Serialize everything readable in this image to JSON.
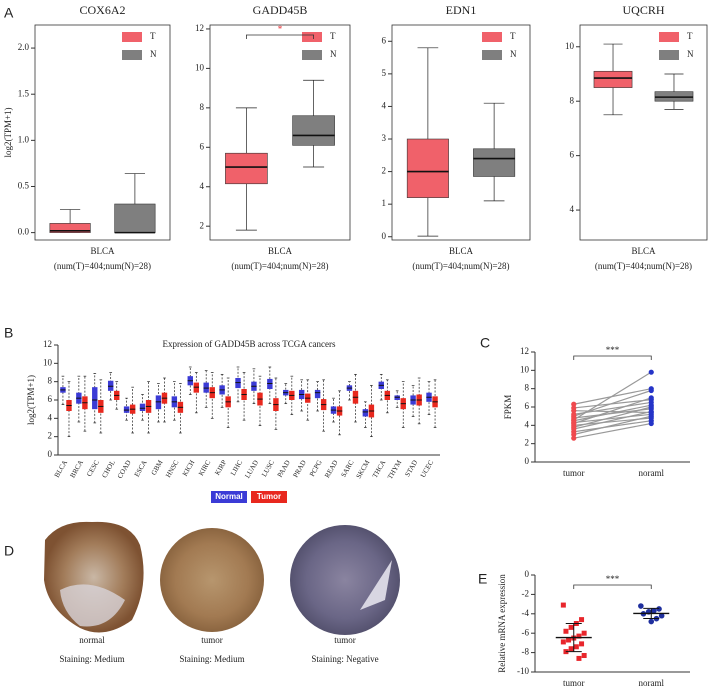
{
  "panel_labels": [
    "A",
    "B",
    "C",
    "D",
    "E"
  ],
  "chart_data": [
    {
      "type": "box",
      "title": "COX6A2",
      "ylabel": "log2(TPM+1)",
      "categories": [
        "BLCA"
      ],
      "xlabel": "(num(T)=404;num(N)=28)",
      "ylim": [
        -0.08,
        2.25
      ],
      "yticks": [
        {
          "value": 0,
          "label": "0.0"
        },
        0.5,
        {
          "value": 1,
          "label": "1.0"
        },
        1.5,
        {
          "value": 2,
          "label": "2.0"
        }
      ],
      "legend": "upper right",
      "series": [
        {
          "name": "T",
          "color": "#f0616a",
          "boxes": [
            [
              0,
              0,
              0.02,
              0.1,
              0.25
            ]
          ]
        },
        {
          "name": "N",
          "color": "#7f7f7f",
          "boxes": [
            [
              0,
              0,
              0,
              0.31,
              0.64
            ]
          ]
        }
      ]
    },
    {
      "type": "box",
      "title": "GADD45B",
      "categories": [
        "BLCA"
      ],
      "xlabel": "(num(T)=404;num(N)=28)",
      "ylim": [
        1.3,
        12.2
      ],
      "yticks": [
        2,
        4,
        6,
        8,
        10,
        12
      ],
      "legend": "upper right",
      "annotation": "*",
      "annotation_color": "#e8262c",
      "series": [
        {
          "name": "T",
          "color": "#f0616a",
          "boxes": [
            [
              1.8,
              4.15,
              5.0,
              5.7,
              8.0
            ]
          ]
        },
        {
          "name": "N",
          "color": "#7f7f7f",
          "boxes": [
            [
              5.0,
              6.1,
              6.6,
              7.6,
              9.4
            ]
          ]
        }
      ]
    },
    {
      "type": "box",
      "title": "EDN1",
      "categories": [
        "BLCA"
      ],
      "xlabel": "(num(T)=404;num(N)=28)",
      "ylim": [
        -0.1,
        6.5
      ],
      "yticks": [
        0,
        1,
        2,
        3,
        4,
        5,
        6
      ],
      "legend": "upper right",
      "series": [
        {
          "name": "T",
          "color": "#f0616a",
          "boxes": [
            [
              0.02,
              1.2,
              2.0,
              3.0,
              5.8
            ]
          ]
        },
        {
          "name": "N",
          "color": "#7f7f7f",
          "boxes": [
            [
              1.1,
              1.85,
              2.4,
              2.7,
              4.1
            ]
          ]
        }
      ]
    },
    {
      "type": "box",
      "title": "UQCRH",
      "categories": [
        "BLCA"
      ],
      "xlabel": "(num(T)=404;num(N)=28)",
      "ylim": [
        2.9,
        10.8
      ],
      "yticks": [
        4,
        6,
        8,
        10
      ],
      "legend": "upper right",
      "series": [
        {
          "name": "T",
          "color": "#f0616a",
          "boxes": [
            [
              7.5,
              8.5,
              8.85,
              9.1,
              10.1
            ]
          ]
        },
        {
          "name": "N",
          "color": "#7f7f7f",
          "boxes": [
            [
              7.7,
              8.0,
              8.15,
              8.35,
              9.0
            ]
          ]
        }
      ]
    },
    {
      "type": "box",
      "title": "Expression of GADD45B across TCGA cancers",
      "ylabel": "log2(TPM+1)",
      "categories": [
        "BLCA",
        "BRCA",
        "CESC",
        "CHOL",
        "COAD",
        "ESCA",
        "GBM",
        "HNSC",
        "KICH",
        "KIRC",
        "KIRP",
        "LIHC",
        "LUAD",
        "LUSC",
        "PAAD",
        "PRAD",
        "PCPG",
        "READ",
        "SARC",
        "SKCM",
        "THCA",
        "THYM",
        "STAD",
        "UCEC"
      ],
      "ylim": [
        0,
        12
      ],
      "yticks": [
        0,
        2,
        4,
        6,
        8,
        10,
        12
      ],
      "legend": "bottom",
      "rotate_labels": true,
      "series": [
        {
          "name": "Normal",
          "color": "#3b3bd6",
          "boxes": [
            [
              5.5,
              6.8,
              7.1,
              7.4,
              8.6
            ],
            [
              3.6,
              5.6,
              6.2,
              6.8,
              8.6
            ],
            [
              3.5,
              5.0,
              6.0,
              7.4,
              8.9
            ],
            [
              6.0,
              7.0,
              7.5,
              8.1,
              9.0
            ],
            [
              3.8,
              4.6,
              4.9,
              5.3,
              6.2
            ],
            [
              3.8,
              4.8,
              5.1,
              5.6,
              6.6
            ],
            [
              3.6,
              5.0,
              5.8,
              6.5,
              7.8
            ],
            [
              3.8,
              5.2,
              5.8,
              6.4,
              8.0
            ],
            [
              6.6,
              7.6,
              8.1,
              8.6,
              9.6
            ],
            [
              5.2,
              6.8,
              7.3,
              7.9,
              9.2
            ],
            [
              5.2,
              6.6,
              7.1,
              7.6,
              8.8
            ],
            [
              5.8,
              7.3,
              7.9,
              8.4,
              9.6
            ],
            [
              5.6,
              7.0,
              7.5,
              8.0,
              9.4
            ],
            [
              5.6,
              7.2,
              7.8,
              8.3,
              9.6
            ],
            [
              5.6,
              6.5,
              6.8,
              7.1,
              7.8
            ],
            [
              4.8,
              6.1,
              6.6,
              7.1,
              8.2
            ],
            [
              4.8,
              6.2,
              6.8,
              7.1,
              8.0
            ],
            [
              3.6,
              4.5,
              4.9,
              5.3,
              6.2
            ],
            [
              6.0,
              7.0,
              7.3,
              7.6,
              8.0
            ],
            [
              3.0,
              4.2,
              4.7,
              5.0,
              5.8
            ],
            [
              6.0,
              7.2,
              7.6,
              8.0,
              8.8
            ],
            [
              5.2,
              6.0,
              6.3,
              6.5,
              7.0
            ],
            [
              4.2,
              5.5,
              6.0,
              6.5,
              7.6
            ],
            [
              4.4,
              5.8,
              6.3,
              6.8,
              8.0
            ]
          ]
        },
        {
          "name": "Tumor",
          "color": "#e8281e",
          "boxes": [
            [
              2.0,
              4.8,
              5.4,
              6.0,
              8.0
            ],
            [
              2.6,
              5.0,
              5.7,
              6.4,
              8.6
            ],
            [
              2.4,
              4.6,
              5.3,
              6.0,
              8.2
            ],
            [
              5.0,
              6.0,
              6.5,
              7.0,
              8.0
            ],
            [
              2.4,
              4.5,
              5.0,
              5.5,
              7.4
            ],
            [
              2.4,
              4.6,
              5.3,
              6.0,
              8.0
            ],
            [
              3.6,
              5.6,
              6.2,
              6.8,
              8.4
            ],
            [
              2.4,
              4.6,
              5.2,
              5.8,
              7.8
            ],
            [
              4.6,
              6.8,
              7.4,
              7.9,
              9.0
            ],
            [
              4.0,
              6.2,
              6.8,
              7.4,
              9.0
            ],
            [
              3.0,
              5.2,
              5.8,
              6.4,
              8.4
            ],
            [
              3.8,
              6.0,
              6.6,
              7.2,
              9.0
            ],
            [
              3.2,
              5.4,
              6.1,
              6.8,
              8.6
            ],
            [
              2.8,
              4.8,
              5.5,
              6.2,
              8.4
            ],
            [
              4.4,
              6.0,
              6.5,
              7.0,
              8.6
            ],
            [
              3.8,
              5.7,
              6.2,
              6.7,
              8.2
            ],
            [
              2.6,
              4.9,
              5.5,
              6.1,
              8.2
            ],
            [
              2.2,
              4.3,
              4.8,
              5.3,
              7.0
            ],
            [
              3.6,
              5.6,
              6.3,
              7.0,
              8.8
            ],
            [
              2.0,
              4.1,
              4.8,
              5.5,
              7.6
            ],
            [
              4.6,
              6.0,
              6.5,
              7.0,
              8.2
            ],
            [
              3.0,
              5.0,
              5.6,
              6.2,
              8.0
            ],
            [
              3.4,
              5.4,
              6.0,
              6.6,
              8.4
            ],
            [
              3.0,
              5.2,
              5.8,
              6.4,
              8.2
            ]
          ]
        }
      ]
    },
    {
      "type": "paired",
      "ylabel": "FPKM",
      "categories": [
        "tumor",
        "noraml"
      ],
      "colors": [
        "#ef4a4f",
        "#2534c8"
      ],
      "values": [
        [
          2.6,
          3.0,
          3.3,
          3.6,
          3.8,
          4.0,
          4.2,
          4.3,
          4.5,
          4.6,
          4.8,
          5.0,
          5.2,
          5.6,
          5.9,
          6.3
        ],
        [
          4.2,
          5.0,
          4.5,
          5.5,
          6.0,
          4.8,
          7.0,
          5.2,
          6.2,
          9.8,
          5.8,
          7.8,
          6.5,
          5.4,
          6.8,
          8.0
        ]
      ],
      "ylim": [
        0,
        12
      ],
      "yticks": [
        0,
        2,
        4,
        6,
        8,
        10,
        12
      ],
      "annotation": "***"
    },
    {
      "type": "dotmean",
      "ylabel": "Relative mRNA expression",
      "categories": [
        "tumor",
        "noraml"
      ],
      "colors": [
        "#e8262c",
        "#1f2f9e"
      ],
      "markers": [
        "square",
        "circle"
      ],
      "values": [
        [
          -3.1,
          -4.6,
          -5.0,
          -5.4,
          -5.8,
          -6.0,
          -6.3,
          -6.5,
          -6.7,
          -6.9,
          -7.1,
          -7.4,
          -7.6,
          -7.9,
          -8.3,
          -8.6
        ],
        [
          -3.2,
          -3.5,
          -3.7,
          -3.8,
          -4.0,
          -4.2,
          -4.5,
          -4.8
        ]
      ],
      "means": [
        -6.45,
        -3.96
      ],
      "sds": [
        1.45,
        0.52
      ],
      "ylim": [
        -10,
        0
      ],
      "yticks": [
        0,
        -2,
        -4,
        -6,
        -8,
        -10
      ],
      "annotation": "***"
    }
  ],
  "staining_images": [
    {
      "tissue": "normal",
      "staining": "Staining: Medium"
    },
    {
      "tissue": "tumor",
      "staining": "Staining: Medium"
    },
    {
      "tissue": "tumor",
      "staining": "Staining:  Negative"
    }
  ]
}
